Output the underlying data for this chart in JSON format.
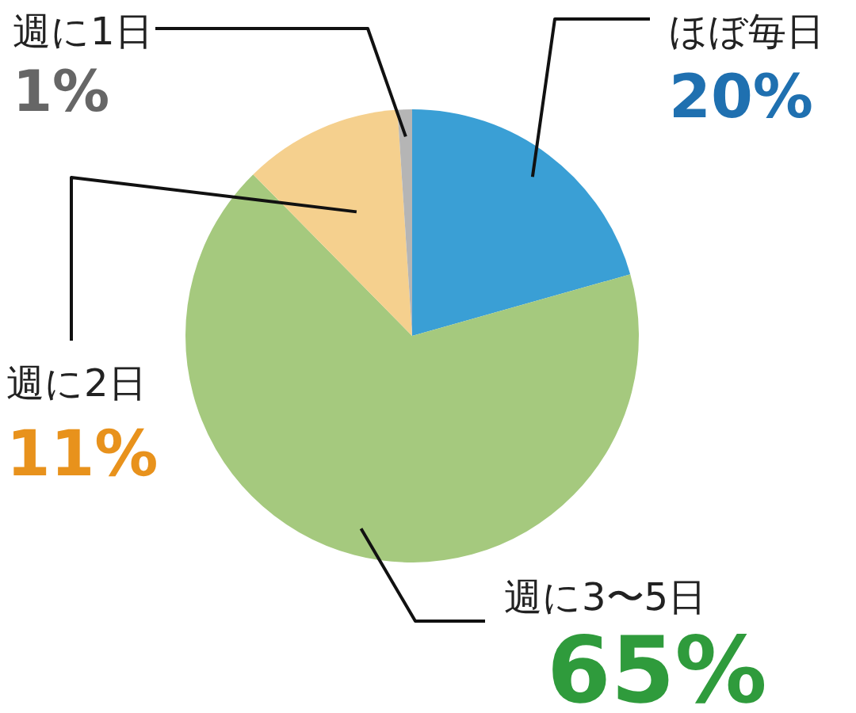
{
  "chart_data": {
    "type": "pie",
    "categories": [
      "ほぼ毎日",
      "週に3〜5日",
      "週に2日",
      "週に1日"
    ],
    "values": [
      20,
      65,
      11,
      1
    ],
    "colors": [
      "#3a9fd5",
      "#a5c97e",
      "#f5d08e",
      "#b5b5b5"
    ],
    "value_labels": [
      "20%",
      "65%",
      "11%",
      "1%"
    ],
    "legend": false
  }
}
